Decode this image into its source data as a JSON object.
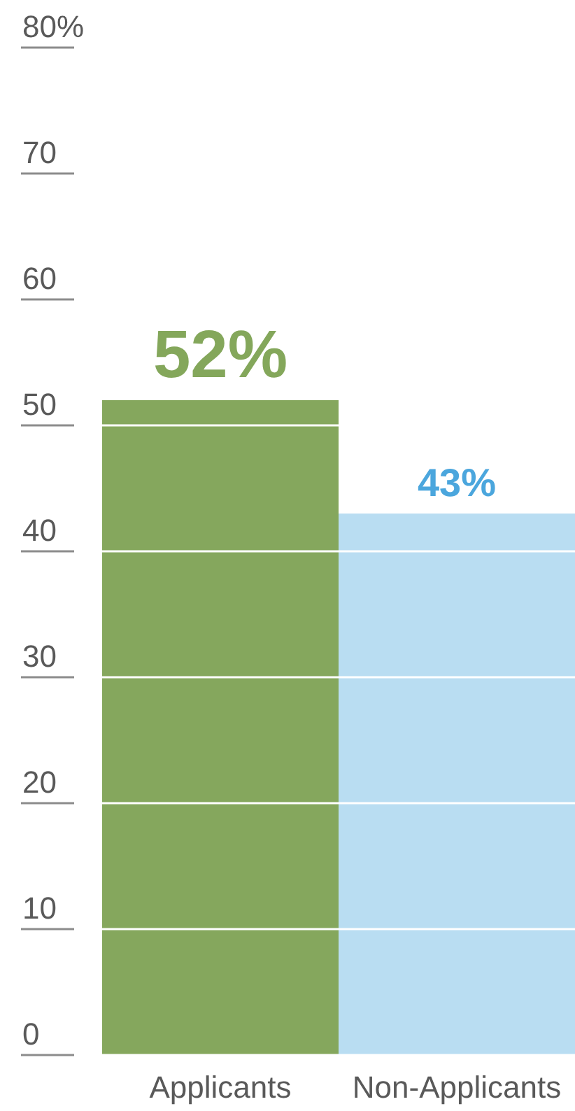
{
  "chart_data": {
    "type": "bar",
    "categories": [
      "Applicants",
      "Non-Applicants"
    ],
    "values": [
      52,
      43
    ],
    "colors": [
      "#85a75d",
      "#b9ddf2"
    ],
    "value_labels": [
      "52%",
      "43%"
    ],
    "ylim": [
      0,
      80
    ],
    "yticks": [
      0,
      10,
      20,
      30,
      40,
      50,
      60,
      70,
      {
        "value": 80,
        "label": "80%"
      }
    ],
    "grid": "y"
  }
}
